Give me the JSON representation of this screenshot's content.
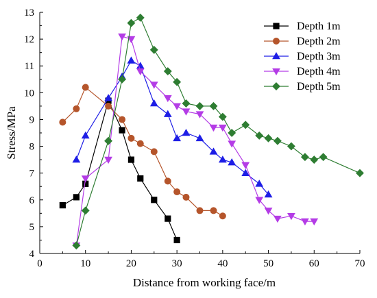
{
  "chart_data": {
    "type": "line",
    "xlabel": "Distance from working face/m",
    "ylabel": "Stress/MPa",
    "xlim": [
      0,
      70
    ],
    "ylim": [
      4,
      13
    ],
    "xticks": [
      0,
      10,
      20,
      30,
      40,
      50,
      60,
      70
    ],
    "yticks": [
      4,
      5,
      6,
      7,
      8,
      9,
      10,
      11,
      12,
      13
    ],
    "legend_position": "top-right",
    "grid": false,
    "series": [
      {
        "name": "Depth 1m",
        "color": "#000000",
        "marker": "square",
        "x": [
          5,
          8,
          10,
          15,
          18,
          20,
          22,
          25,
          28,
          30
        ],
        "y": [
          5.8,
          6.1,
          6.6,
          9.7,
          8.6,
          7.5,
          6.8,
          6.0,
          5.3,
          4.5
        ]
      },
      {
        "name": "Depth 2m",
        "color": "#B5552B",
        "marker": "circle",
        "x": [
          5,
          8,
          10,
          15,
          18,
          20,
          22,
          25,
          28,
          30,
          32,
          35,
          38,
          40
        ],
        "y": [
          8.9,
          9.4,
          10.2,
          9.5,
          9.0,
          8.3,
          8.1,
          7.8,
          6.7,
          6.3,
          6.1,
          5.6,
          5.6,
          5.4
        ]
      },
      {
        "name": "Depth 3m",
        "color": "#1E1EE6",
        "marker": "triangle-up",
        "x": [
          8,
          10,
          15,
          18,
          20,
          22,
          25,
          28,
          30,
          32,
          35,
          38,
          40,
          42,
          45,
          48,
          50
        ],
        "y": [
          7.5,
          8.4,
          9.8,
          10.6,
          11.2,
          11.0,
          9.6,
          9.2,
          8.3,
          8.5,
          8.3,
          7.8,
          7.5,
          7.4,
          7.0,
          6.6,
          6.2
        ]
      },
      {
        "name": "Depth 4m",
        "color": "#B43CE6",
        "marker": "triangle-down",
        "x": [
          8,
          10,
          15,
          18,
          20,
          22,
          25,
          28,
          30,
          32,
          35,
          38,
          40,
          42,
          45,
          48,
          50,
          52,
          55,
          58,
          60
        ],
        "y": [
          4.3,
          6.8,
          7.5,
          12.1,
          12.0,
          10.8,
          10.3,
          9.8,
          9.5,
          9.3,
          9.2,
          8.7,
          8.7,
          8.1,
          7.3,
          6.0,
          5.6,
          5.3,
          5.4,
          5.2,
          5.2
        ]
      },
      {
        "name": "Depth 5m",
        "color": "#2E7D32",
        "marker": "diamond",
        "x": [
          8,
          10,
          15,
          18,
          20,
          22,
          25,
          28,
          30,
          32,
          35,
          38,
          40,
          42,
          45,
          48,
          50,
          52,
          55,
          58,
          60,
          62,
          70
        ],
        "y": [
          4.3,
          5.6,
          8.2,
          10.5,
          12.6,
          12.8,
          11.6,
          10.8,
          10.4,
          9.6,
          9.5,
          9.5,
          9.1,
          8.5,
          8.8,
          8.4,
          8.3,
          8.2,
          8.0,
          7.6,
          7.5,
          7.6,
          7.0
        ]
      }
    ]
  }
}
